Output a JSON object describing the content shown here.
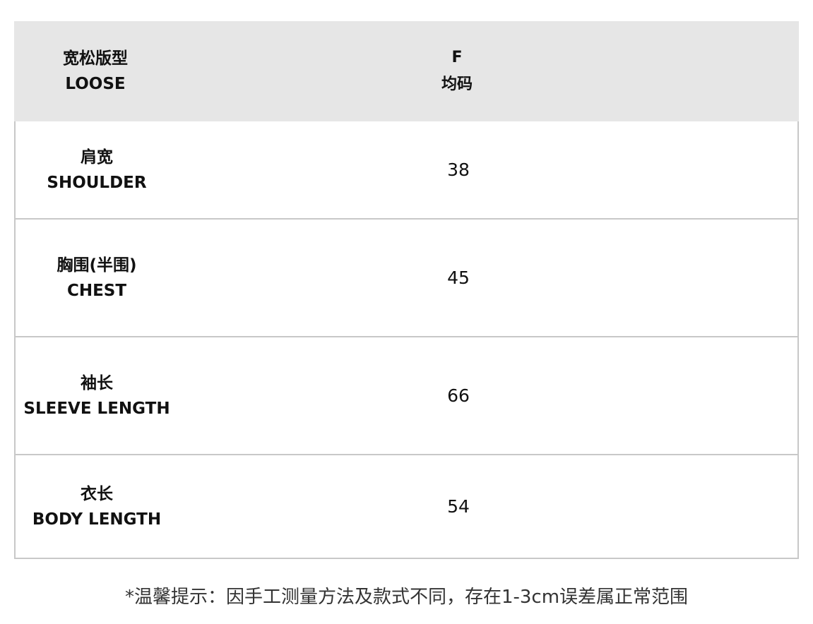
{
  "header": {
    "label_cn": "宽松版型",
    "label_en": "LOOSE",
    "size_code": "F",
    "size_cn": "均码"
  },
  "rows": [
    {
      "label_cn": "肩宽",
      "label_en": "SHOULDER",
      "value": "38"
    },
    {
      "label_cn": "胸围(半围)",
      "label_en": "CHEST",
      "value": "45"
    },
    {
      "label_cn": "袖长",
      "label_en": "SLEEVE LENGTH",
      "value": "66"
    },
    {
      "label_cn": "衣长",
      "label_en": "BODY LENGTH",
      "value": "54"
    }
  ],
  "note": "*温馨提示：因手工测量方法及款式不同，存在1-3cm误差属正常范围"
}
